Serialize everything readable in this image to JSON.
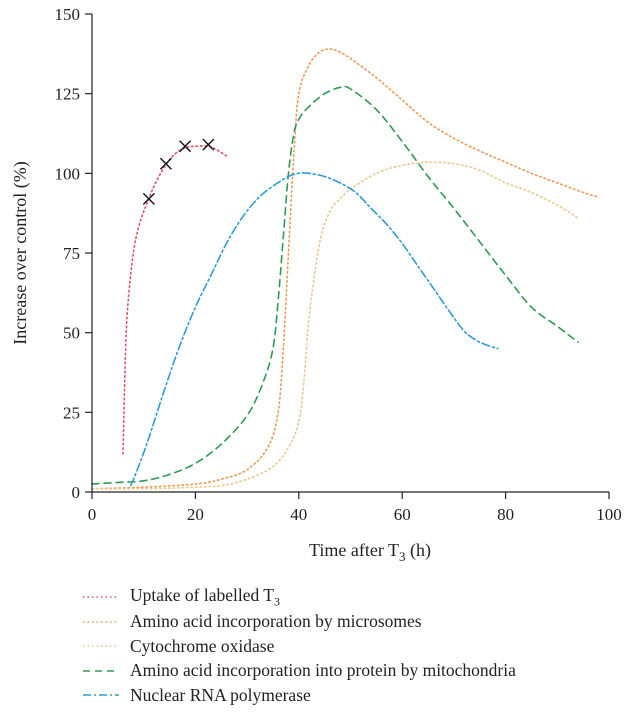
{
  "chart_data": {
    "type": "line",
    "xlabel": "Time after T",
    "xlabel_sub": "3",
    "xlabel_suffix": " (h)",
    "ylabel": "Increase over control (%)",
    "xlim": [
      0,
      100
    ],
    "ylim": [
      0,
      150
    ],
    "xticks": [
      "0",
      "20",
      "40",
      "60",
      "80",
      "100"
    ],
    "yticks": [
      "0",
      "25",
      "50",
      "75",
      "100",
      "125",
      "150"
    ],
    "grid": false,
    "legend_position": "bottom",
    "series": [
      {
        "name": "Uptake of labelled T",
        "name_sub": "3",
        "color": "#e05060",
        "dash": "1.5,3",
        "x": [
          6,
          6.5,
          7,
          8,
          9,
          10,
          11,
          12,
          14,
          16,
          18,
          20,
          22.5,
          24,
          26
        ],
        "y": [
          12,
          45,
          60,
          75,
          83,
          88,
          92,
          96,
          102,
          106,
          108,
          108.5,
          108.5,
          107.5,
          105.5
        ],
        "markers": {
          "symbol": "x",
          "x": [
            11,
            14.3,
            18,
            22.5
          ],
          "y": [
            92,
            103,
            108.5,
            109
          ]
        }
      },
      {
        "name": "Amino acid incorporation by microsomes",
        "color": "#e89a55",
        "dash": "1.5,3",
        "x": [
          0,
          10,
          20,
          25,
          30,
          34,
          36,
          37,
          38,
          39,
          40,
          42,
          44,
          46,
          48,
          50,
          55,
          60,
          65,
          70,
          75,
          80,
          85,
          90,
          95,
          98
        ],
        "y": [
          1,
          1.5,
          2.5,
          4,
          7,
          14,
          25,
          45,
          75,
          105,
          125,
          134,
          138,
          139,
          138,
          136,
          130,
          123,
          116,
          111,
          107,
          103.5,
          100,
          97,
          94,
          92.5
        ]
      },
      {
        "name": "Cytochrome oxidase",
        "color": "#e9c98f",
        "dash": "1.5,3",
        "x": [
          0,
          10,
          20,
          25,
          30,
          35,
          38,
          40,
          41,
          42,
          44,
          46,
          48,
          50,
          55,
          60,
          65,
          70,
          75,
          80,
          85,
          90,
          94
        ],
        "y": [
          1,
          1,
          1.5,
          2,
          4,
          8,
          14,
          22,
          35,
          55,
          78,
          88,
          92,
          95,
          100,
          102.5,
          103.5,
          103,
          101,
          97,
          94,
          90,
          86
        ]
      },
      {
        "name": "Amino acid incorporation into protein by mitochondria",
        "color": "#2e9a52",
        "dash": "7,5",
        "x": [
          0,
          5,
          10,
          15,
          20,
          25,
          30,
          33,
          35,
          36,
          37,
          38,
          39,
          40,
          42,
          45,
          48,
          50,
          55,
          60,
          65,
          70,
          75,
          80,
          85,
          90,
          94
        ],
        "y": [
          2.5,
          3,
          3.5,
          5.5,
          9,
          15,
          24,
          34,
          45,
          60,
          80,
          100,
          112,
          117,
          121,
          125,
          127,
          126.5,
          120,
          110,
          99,
          89,
          78.5,
          68,
          58,
          52,
          47
        ]
      },
      {
        "name": "Nuclear RNA polymerase",
        "color": "#2f9bd0",
        "dash": "8,3,2,3",
        "x": [
          7.5,
          9,
          11,
          14,
          17,
          20,
          23,
          26,
          29,
          32,
          35,
          38,
          40,
          42,
          45,
          48,
          51,
          54,
          57,
          60,
          63,
          66,
          69,
          72,
          75,
          78.5
        ],
        "y": [
          2,
          8,
          17,
          32,
          46,
          58,
          68,
          78,
          86,
          92,
          96,
          99,
          100,
          100,
          99,
          97,
          94,
          89,
          84,
          78,
          71,
          64,
          57,
          50.5,
          47,
          45
        ]
      }
    ]
  }
}
